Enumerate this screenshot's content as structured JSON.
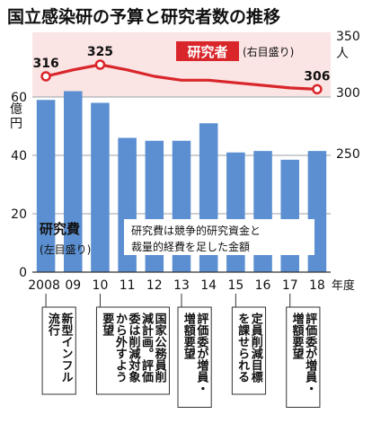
{
  "chart_data": {
    "type": "bar",
    "title": "国立感染研の予算と研究者数の推移",
    "categories": [
      "2008",
      "09",
      "10",
      "11",
      "12",
      "13",
      "14",
      "15",
      "16",
      "17",
      "18"
    ],
    "category_suffix": "年度",
    "series": [
      {
        "name": "研究費",
        "axis_note": "(左目盛り)",
        "type": "bar",
        "values": [
          59,
          62,
          58,
          46,
          45,
          45,
          51,
          41,
          41.5,
          38.5,
          41.5
        ]
      },
      {
        "name": "研究者",
        "axis_note": "(右目盛り)",
        "type": "line",
        "values": [
          316,
          321,
          325,
          321,
          316,
          313,
          313,
          311,
          309,
          307,
          306
        ],
        "labels": [
          {
            "index": 0,
            "text": "316"
          },
          {
            "index": 2,
            "text": "325"
          },
          {
            "index": 10,
            "text": "306"
          }
        ]
      }
    ],
    "left_axis": {
      "unit": "億円",
      "range": [
        0,
        60
      ],
      "ticks": [
        "0",
        "20",
        "40",
        "60"
      ]
    },
    "right_axis": {
      "unit": "人",
      "range": [
        250,
        350
      ],
      "ticks": [
        "250",
        "300",
        "350"
      ]
    },
    "grid": true,
    "annotation": [
      "研究費は競争的研究資金と",
      "裁量的経費を足した金額"
    ],
    "events": [
      {
        "index": 0,
        "lines": [
          "流行",
          "新型インフル"
        ]
      },
      {
        "index": 2,
        "lines": [
          "要望",
          "から外すよう",
          "委は削減対象",
          "減計画。評価",
          "国家公務員削"
        ]
      },
      {
        "index": 5,
        "lines": [
          "増額要望",
          "評価委が増員・"
        ]
      },
      {
        "index": 7,
        "lines": [
          "を課せられる",
          "定員削減目標"
        ]
      },
      {
        "index": 9,
        "lines": [
          "増額要望",
          "評価委が増員・"
        ]
      }
    ],
    "colors": {
      "bar": "#5b8fd1",
      "line": "#d9262b",
      "line_band": "#fbe4e4",
      "legend_bg": "#d9262b",
      "grid": "#9aa0a8"
    }
  }
}
